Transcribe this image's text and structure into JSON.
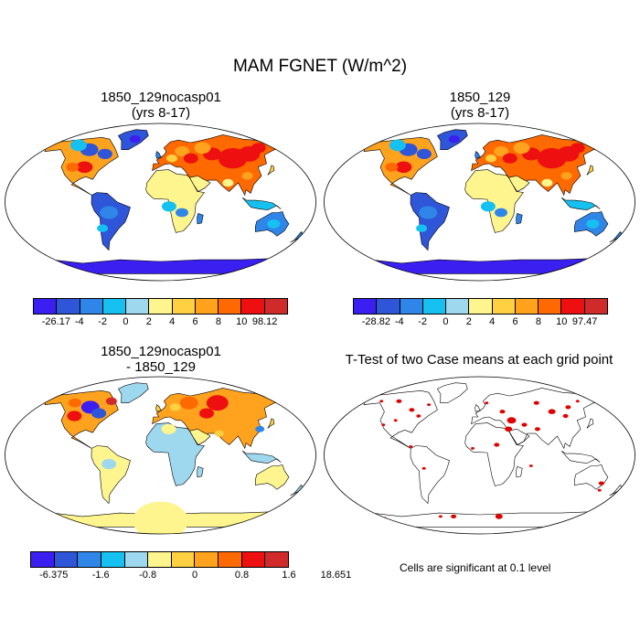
{
  "main_title": "MAM FGNET (W/m^2)",
  "panels": [
    {
      "title_line1": "1850_129nocasp01",
      "title_line2": "(yrs 8-17)"
    },
    {
      "title_line1": "1850_129",
      "title_line2": "(yrs 8-17)"
    },
    {
      "title_line1": "1850_129nocasp01",
      "title_line2": "- 1850_129"
    },
    {
      "title_line1": "T-Test of two Case means at each grid point",
      "title_line2": ""
    }
  ],
  "colorbars": [
    {
      "colors": [
        "#3a1ff0",
        "#2f55d8",
        "#2f86e8",
        "#16c0f0",
        "#9ed8ee",
        "#fff58e",
        "#ffd041",
        "#ffa21d",
        "#ff6a00",
        "#ee1010",
        "#d02a2a"
      ],
      "labels": [
        "-26.17",
        "-4",
        "-2",
        "0",
        "2",
        "4",
        "6",
        "8",
        "10",
        "98.12"
      ]
    },
    {
      "colors": [
        "#3a1ff0",
        "#2f55d8",
        "#2f86e8",
        "#16c0f0",
        "#9ed8ee",
        "#fff58e",
        "#ffd041",
        "#ffa21d",
        "#ff6a00",
        "#ee1010",
        "#d02a2a"
      ],
      "labels": [
        "-28.82",
        "-4",
        "-2",
        "0",
        "2",
        "4",
        "6",
        "8",
        "10",
        "97.47"
      ]
    },
    {
      "colors": [
        "#3a1ff0",
        "#2f55d8",
        "#2f86e8",
        "#16c0f0",
        "#9ed8ee",
        "#fff58e",
        "#ffd041",
        "#ffa21d",
        "#ff6a00",
        "#ee1010",
        "#d02a2a"
      ],
      "labels": [
        "-6.375",
        "-1.6",
        "-0.8",
        "0",
        "0.8",
        "1.6",
        "18.651"
      ]
    }
  ],
  "significance_note": "Cells are significant at 0.1 level",
  "colors": {
    "ocean": "#ffffff",
    "coast": "#000000",
    "significant": "#e00000"
  }
}
